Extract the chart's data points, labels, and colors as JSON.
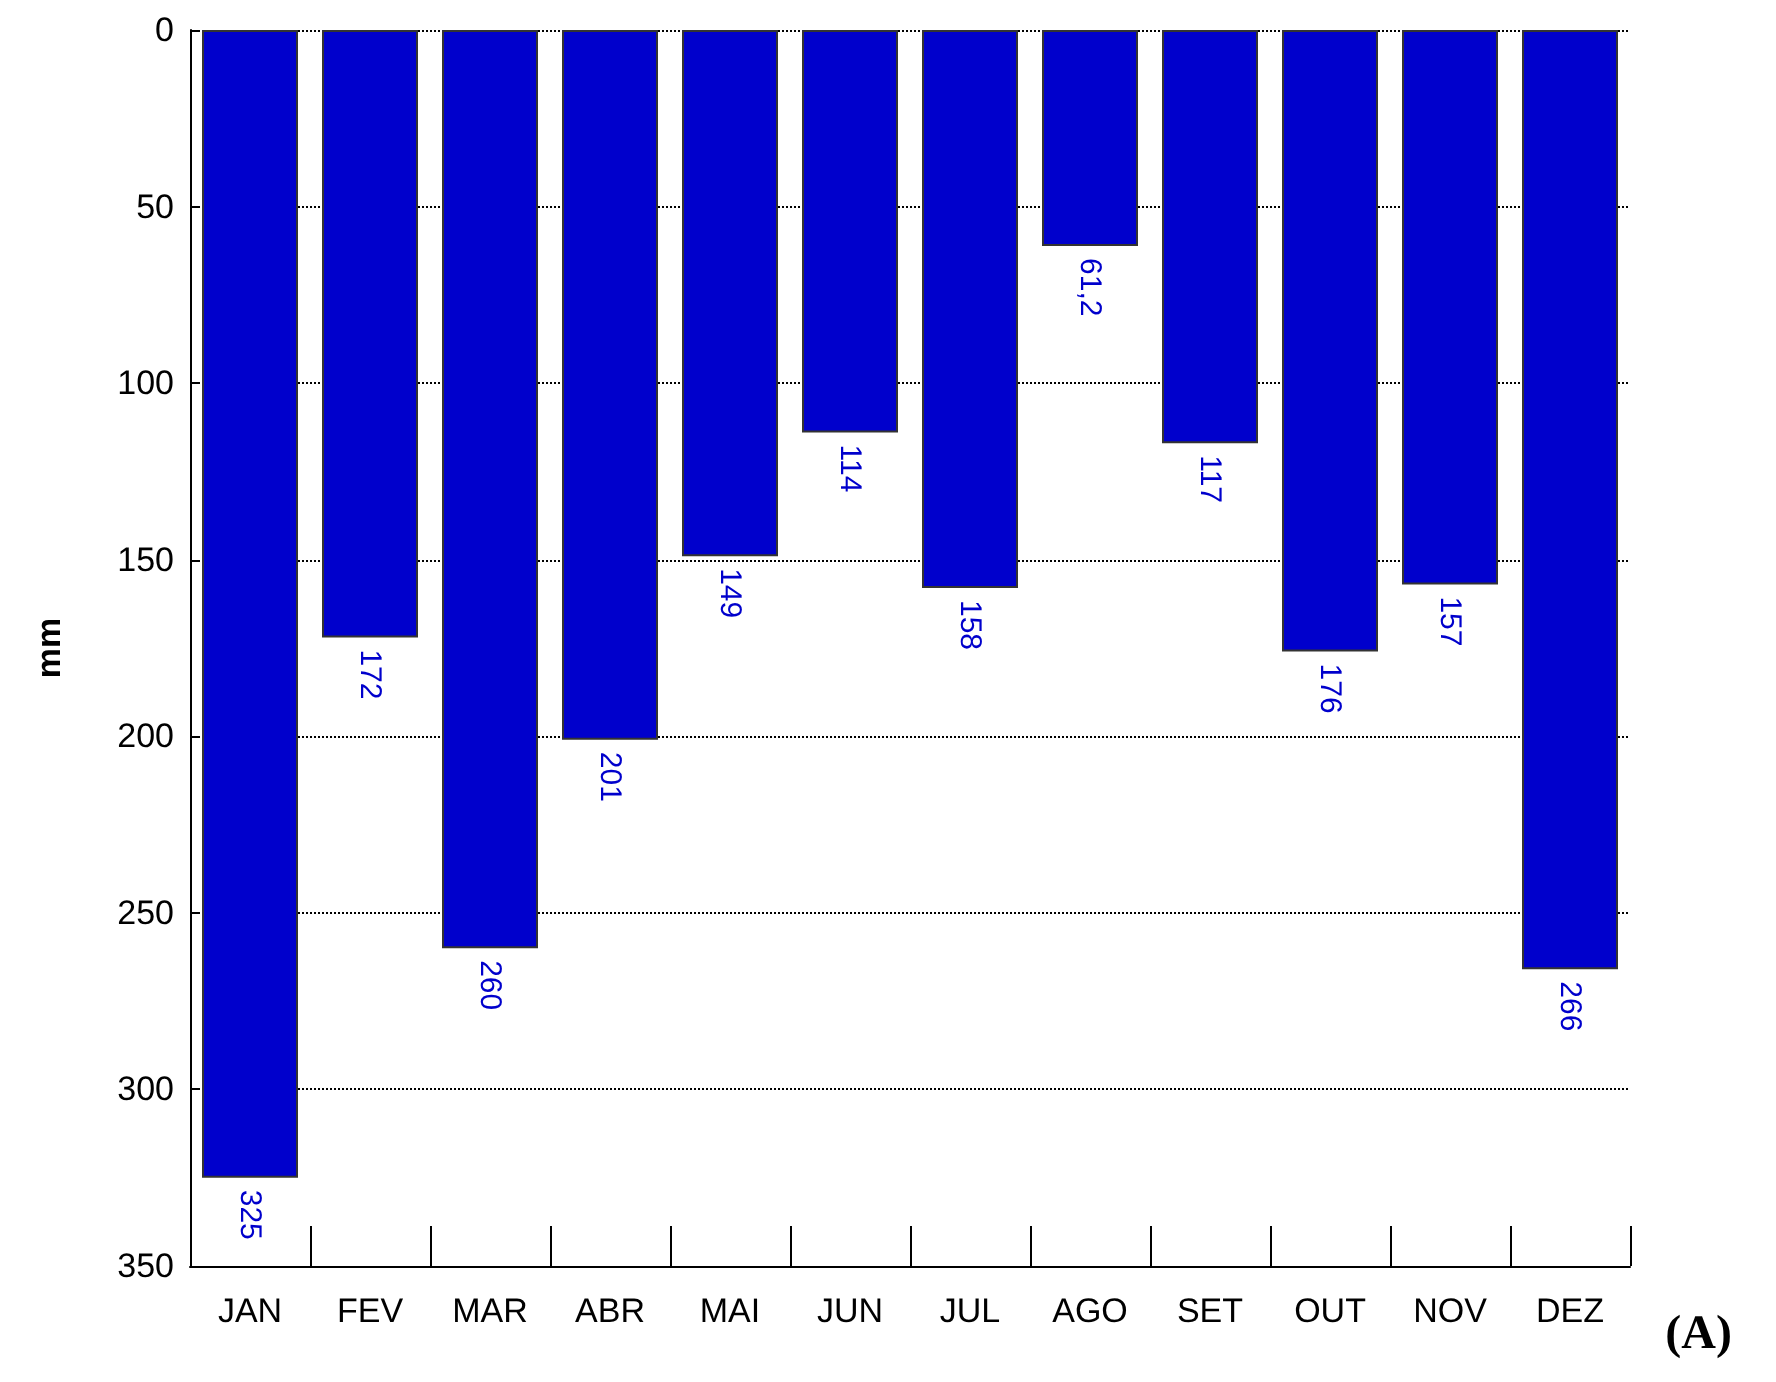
{
  "chart_data": {
    "type": "bar",
    "ylabel": "mm",
    "categories": [
      "JAN",
      "FEV",
      "MAR",
      "ABR",
      "MAI",
      "JUN",
      "JUL",
      "AGO",
      "SET",
      "OUT",
      "NOV",
      "DEZ"
    ],
    "values": [
      325,
      172,
      260,
      201,
      149,
      114,
      158,
      61.2,
      117,
      176,
      157,
      266
    ],
    "value_labels": [
      "325",
      "172",
      "260",
      "201",
      "149",
      "114",
      "158",
      "61,2",
      "117",
      "176",
      "157",
      "266"
    ],
    "color": "#0000cc",
    "ylim": [
      350,
      0
    ],
    "yticks": [
      0,
      50,
      100,
      150,
      200,
      250,
      300,
      350
    ],
    "grid": "y",
    "line_style": "dotted",
    "annotations": [
      "(A)"
    ]
  }
}
